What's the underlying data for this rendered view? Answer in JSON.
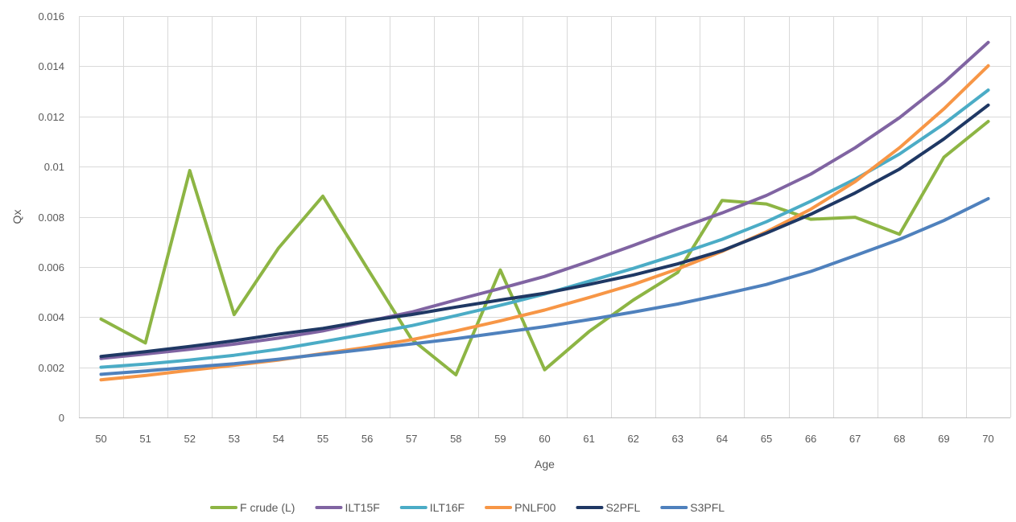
{
  "chart_data": {
    "type": "line",
    "title": "",
    "xlabel": "Age",
    "ylabel": "Qx",
    "x": [
      50,
      51,
      52,
      53,
      54,
      55,
      56,
      57,
      58,
      59,
      60,
      61,
      62,
      63,
      64,
      65,
      66,
      67,
      68,
      69,
      70
    ],
    "x_tick_labels": [
      "50",
      "51",
      "52",
      "53",
      "54",
      "55",
      "56",
      "57",
      "58",
      "59",
      "60",
      "61",
      "62",
      "63",
      "64",
      "65",
      "66",
      "67",
      "68",
      "69",
      "70"
    ],
    "ylim": [
      0,
      0.016
    ],
    "y_ticks": [
      0,
      0.002,
      0.004,
      0.006,
      0.008,
      0.01,
      0.012,
      0.014,
      0.016
    ],
    "y_tick_labels": [
      "0",
      "0.002",
      "0.004",
      "0.006",
      "0.008",
      "0.01",
      "0.012",
      "0.014",
      "0.016"
    ],
    "grid": true,
    "legend_position": "bottom",
    "series": [
      {
        "name": "F crude (L)",
        "color": "#8DB544",
        "values": [
          0.00392,
          0.00297,
          0.00984,
          0.0041,
          0.00675,
          0.00882,
          0.00595,
          0.00312,
          0.0017,
          0.00588,
          0.0019,
          0.00342,
          0.00468,
          0.00578,
          0.00865,
          0.00851,
          0.0079,
          0.00798,
          0.0073,
          0.01037,
          0.0118
        ]
      },
      {
        "name": "ILT15F",
        "color": "#8064A2",
        "values": [
          0.00235,
          0.00253,
          0.00272,
          0.00292,
          0.00316,
          0.00345,
          0.00383,
          0.0042,
          0.00468,
          0.00514,
          0.00562,
          0.00622,
          0.00686,
          0.00752,
          0.00815,
          0.00885,
          0.0097,
          0.01075,
          0.01195,
          0.01335,
          0.01495
        ]
      },
      {
        "name": "ILT16F",
        "color": "#4BACC6",
        "values": [
          0.002,
          0.00213,
          0.00229,
          0.00248,
          0.00272,
          0.00302,
          0.00333,
          0.00366,
          0.00406,
          0.00447,
          0.00492,
          0.00543,
          0.00594,
          0.0065,
          0.0071,
          0.0078,
          0.00862,
          0.0095,
          0.0105,
          0.0117,
          0.01305
        ]
      },
      {
        "name": "PNLF00",
        "color": "#F79646",
        "values": [
          0.0015,
          0.00167,
          0.00188,
          0.00208,
          0.00229,
          0.00255,
          0.0028,
          0.0031,
          0.00345,
          0.00385,
          0.00428,
          0.00478,
          0.0053,
          0.00592,
          0.00662,
          0.0074,
          0.0083,
          0.0094,
          0.01075,
          0.0123,
          0.01402
        ]
      },
      {
        "name": "S2PFL",
        "color": "#1F3864",
        "values": [
          0.00243,
          0.00262,
          0.00283,
          0.00306,
          0.00332,
          0.00355,
          0.00385,
          0.0041,
          0.0044,
          0.00468,
          0.00495,
          0.0053,
          0.00568,
          0.00612,
          0.00665,
          0.00735,
          0.0081,
          0.00895,
          0.0099,
          0.0111,
          0.01245
        ]
      },
      {
        "name": "S3PFL",
        "color": "#4F81BD",
        "values": [
          0.00172,
          0.00185,
          0.002,
          0.00214,
          0.00232,
          0.00252,
          0.00272,
          0.00293,
          0.00314,
          0.00338,
          0.00362,
          0.0039,
          0.0042,
          0.00452,
          0.0049,
          0.0053,
          0.00582,
          0.00645,
          0.0071,
          0.00785,
          0.00872
        ]
      }
    ]
  }
}
